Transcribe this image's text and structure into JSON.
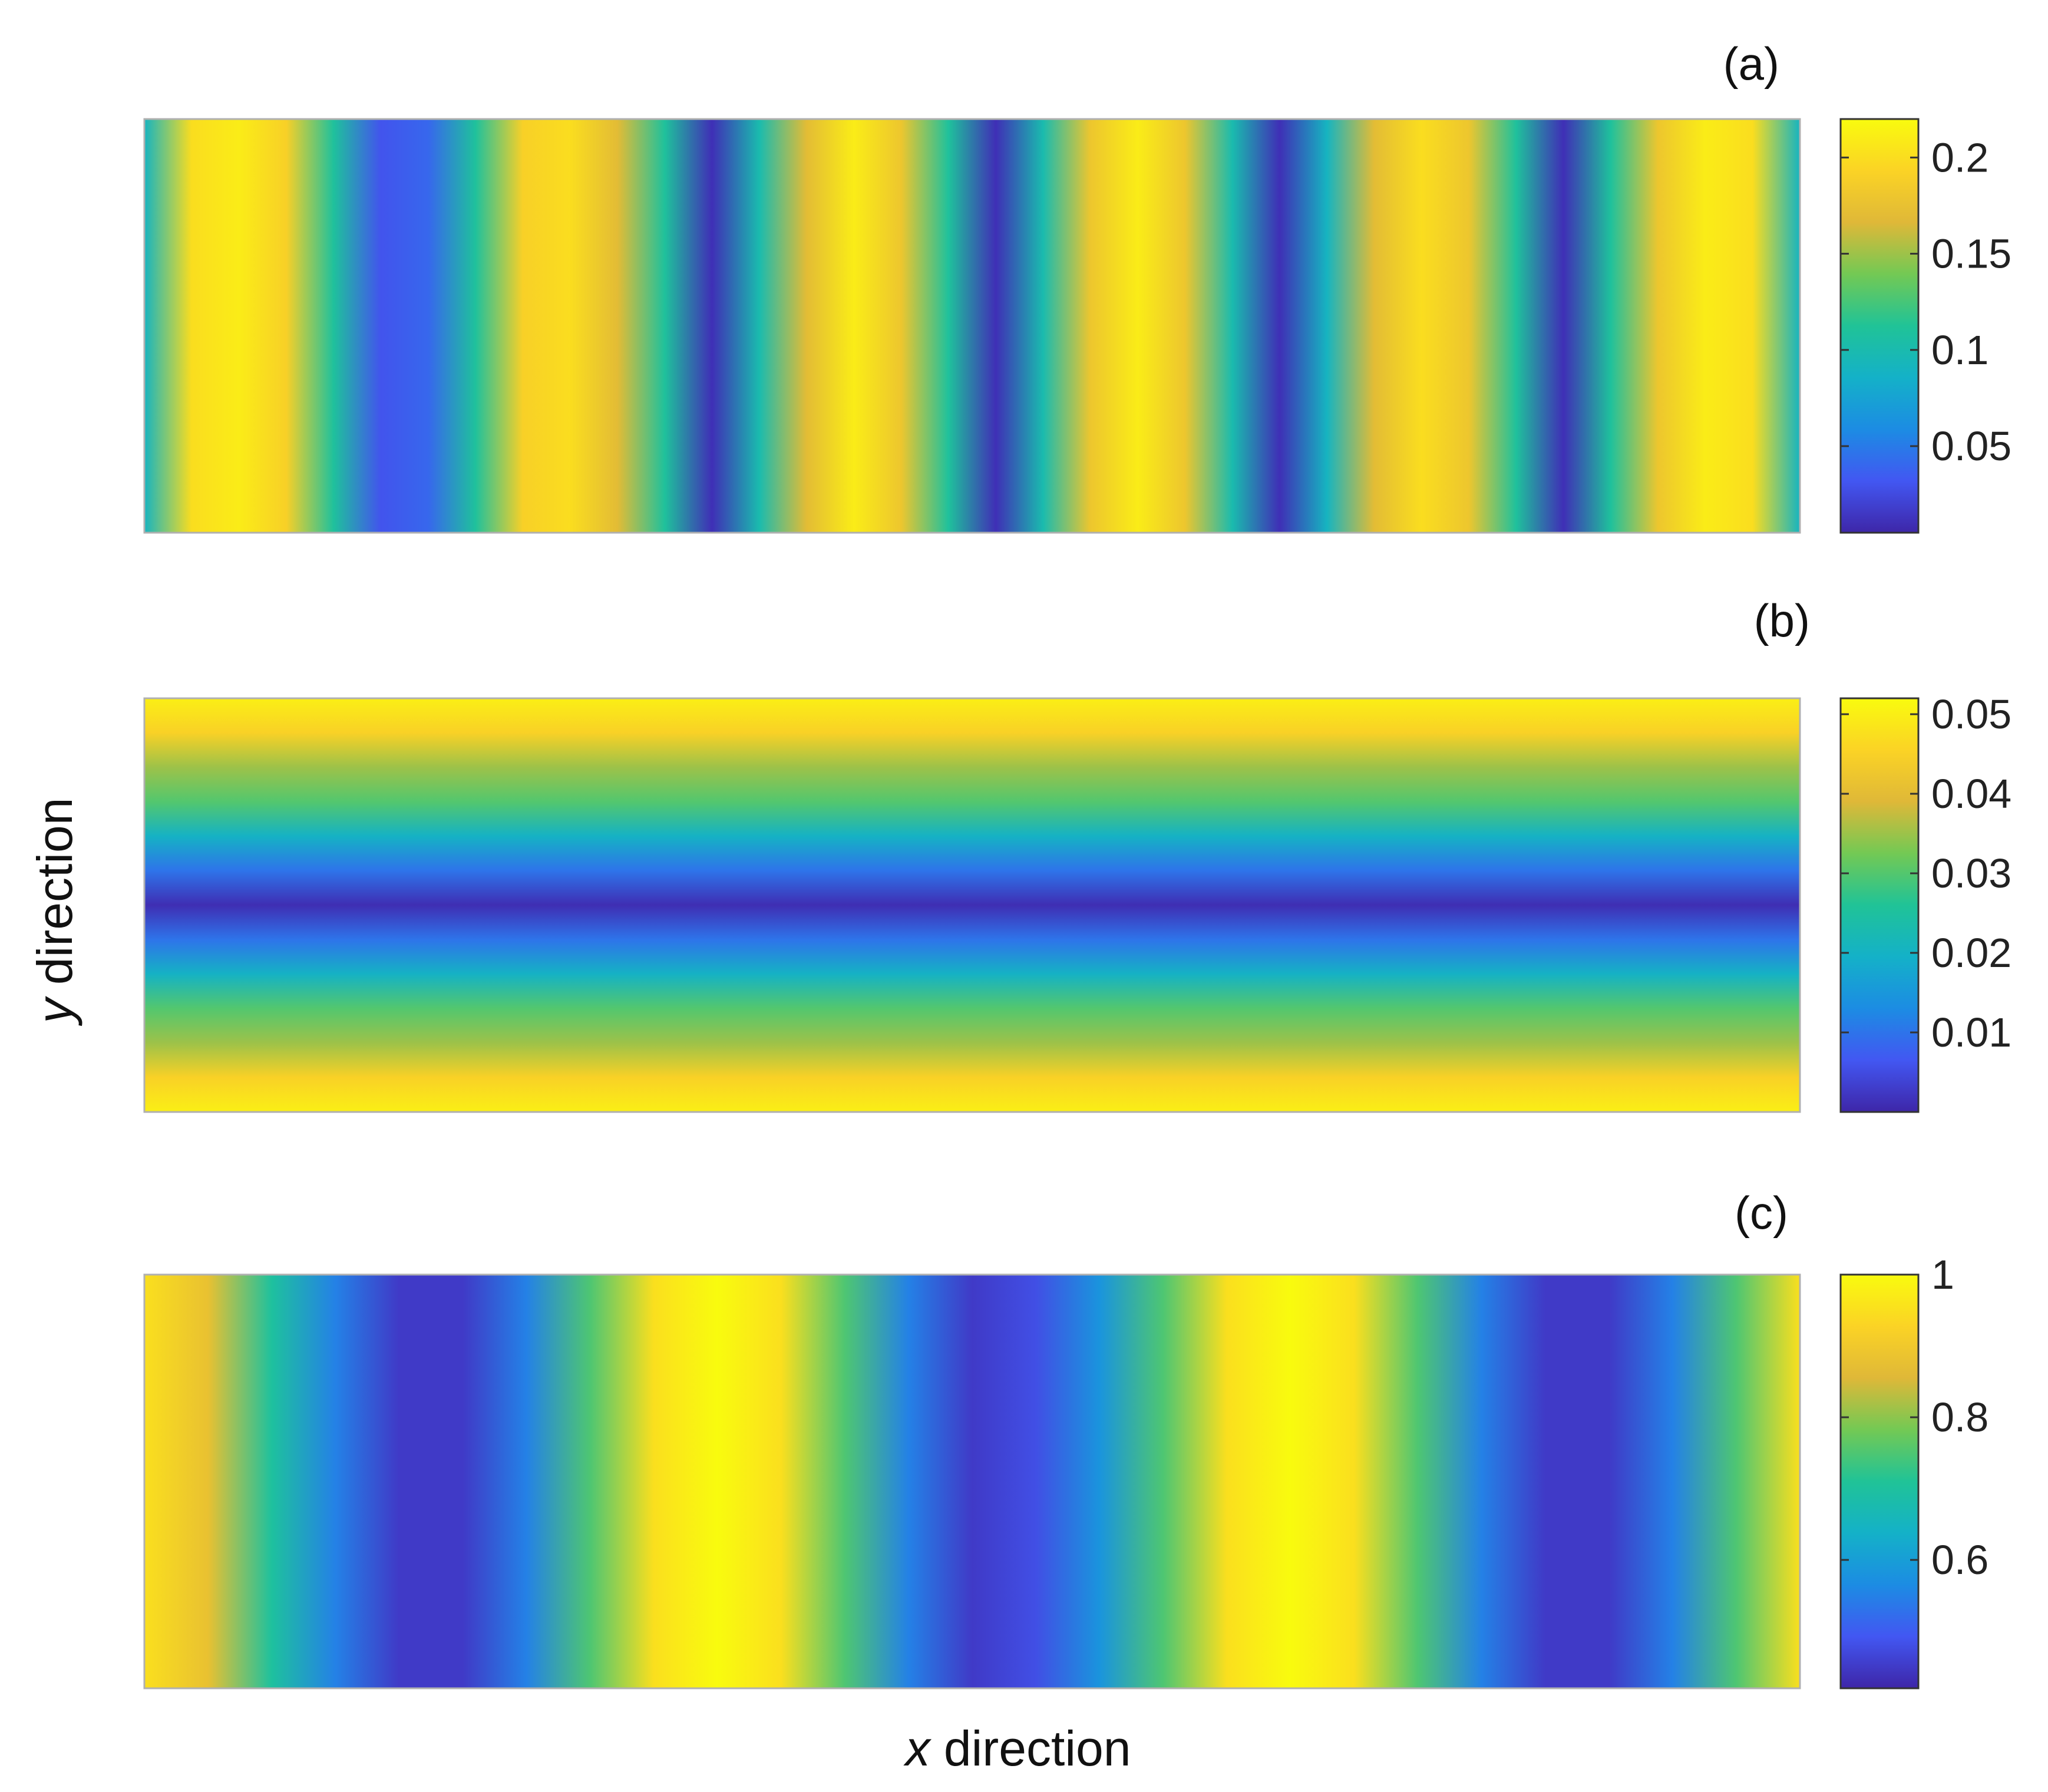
{
  "chart_data": {
    "type": "heatmap",
    "colormap": "parula",
    "colormap_stops": [
      "#3e26a8",
      "#4257f2",
      "#1c8ce3",
      "#14b1c8",
      "#20c397",
      "#73c954",
      "#dfb838",
      "#fbd325",
      "#f9fb0e"
    ],
    "axes": {
      "xlabel_var": "x",
      "xlabel_word": "direction",
      "ylabel_var": "y",
      "ylabel_word": "direction",
      "x_tick_labels_shown": false,
      "y_tick_labels_shown": false
    },
    "panels": [
      {
        "label": "(a)",
        "varies_along": "x",
        "field_profile": [
          0.09,
          0.2,
          0.21,
          0.19,
          0.11,
          0.03,
          0.04,
          0.11,
          0.19,
          0.2,
          0.17,
          0.11,
          0.01,
          0.1,
          0.17,
          0.21,
          0.18,
          0.11,
          0.01,
          0.1,
          0.18,
          0.21,
          0.18,
          0.1,
          0.01,
          0.09,
          0.17,
          0.2,
          0.18,
          0.11,
          0.01,
          0.11,
          0.18,
          0.21,
          0.2,
          0.09
        ],
        "colorbar": {
          "ticks": [
            0.05,
            0.1,
            0.15,
            0.2
          ],
          "tick_labels": [
            "0.05",
            "0.1",
            "0.15",
            "0.2"
          ],
          "range": [
            0.005,
            0.22
          ]
        }
      },
      {
        "label": "(b)",
        "varies_along": "y",
        "field_profile": [
          0.05,
          0.045,
          0.035,
          0.03,
          0.02,
          0.01,
          0.001,
          0.01,
          0.02,
          0.03,
          0.035,
          0.045,
          0.05
        ],
        "colorbar": {
          "ticks": [
            0.01,
            0.02,
            0.03,
            0.04,
            0.05
          ],
          "tick_labels": [
            "0.01",
            "0.02",
            "0.03",
            "0.04",
            "0.05"
          ],
          "range": [
            0.0,
            0.052
          ]
        }
      },
      {
        "label": "(c)",
        "varies_along": "x",
        "field_profile": [
          0.95,
          0.88,
          0.7,
          0.55,
          0.45,
          0.45,
          0.55,
          0.75,
          0.95,
          1.0,
          0.95,
          0.75,
          0.55,
          0.45,
          0.48,
          0.58,
          0.75,
          0.95,
          1.0,
          0.95,
          0.75,
          0.55,
          0.45,
          0.45,
          0.55,
          0.75,
          0.95
        ],
        "colorbar": {
          "ticks": [
            0.6,
            0.8,
            1.0
          ],
          "tick_labels": [
            "0.6",
            "0.8",
            "1"
          ],
          "range": [
            0.42,
            1.0
          ]
        }
      }
    ]
  }
}
